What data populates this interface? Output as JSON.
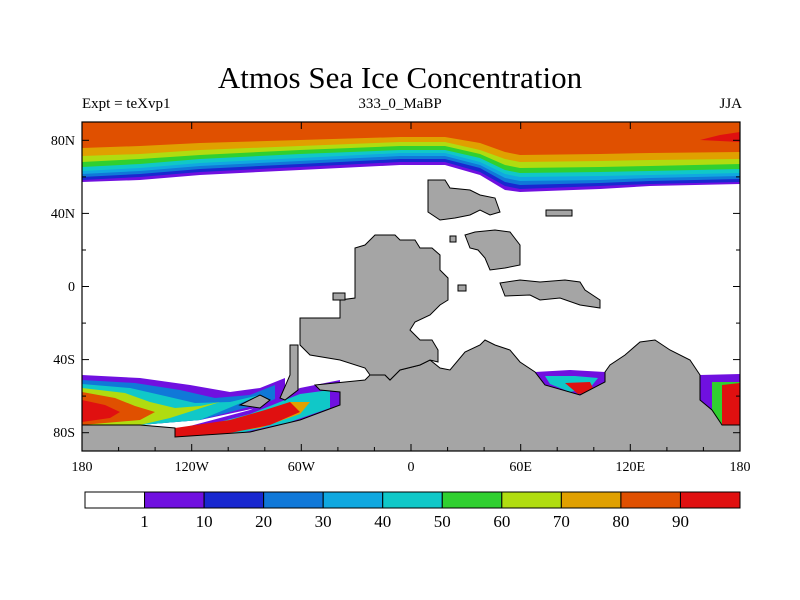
{
  "title": "Atmos Sea Ice Concentration",
  "subtitle_left": "Expt = teXvp1",
  "subtitle_center": "333_0_MaBP",
  "subtitle_right": "JJA",
  "colors": {
    "land": "#a5a5a5",
    "open_water": "#ffffff",
    "levels": [
      "#ffffff",
      "#7010e0",
      "#1828d0",
      "#1078d8",
      "#10a8e0",
      "#10c8c8",
      "#30d030",
      "#b0dc10",
      "#e0a000",
      "#e05000",
      "#e01010"
    ]
  },
  "chart_data": {
    "type": "heatmap",
    "title": "Atmos Sea Ice Concentration",
    "x_ticks": [
      "180",
      "120W",
      "60W",
      "0",
      "60E",
      "120E",
      "180"
    ],
    "y_ticks": [
      "80N",
      "40N",
      "0",
      "40S",
      "80S"
    ],
    "colorbar_labels": [
      "1",
      "10",
      "20",
      "30",
      "40",
      "50",
      "60",
      "70",
      "80",
      "90"
    ],
    "levels": [
      1,
      10,
      20,
      30,
      40,
      50,
      60,
      70,
      80,
      90
    ],
    "xlim": [
      -180,
      180
    ],
    "ylim": [
      -90,
      90
    ]
  }
}
